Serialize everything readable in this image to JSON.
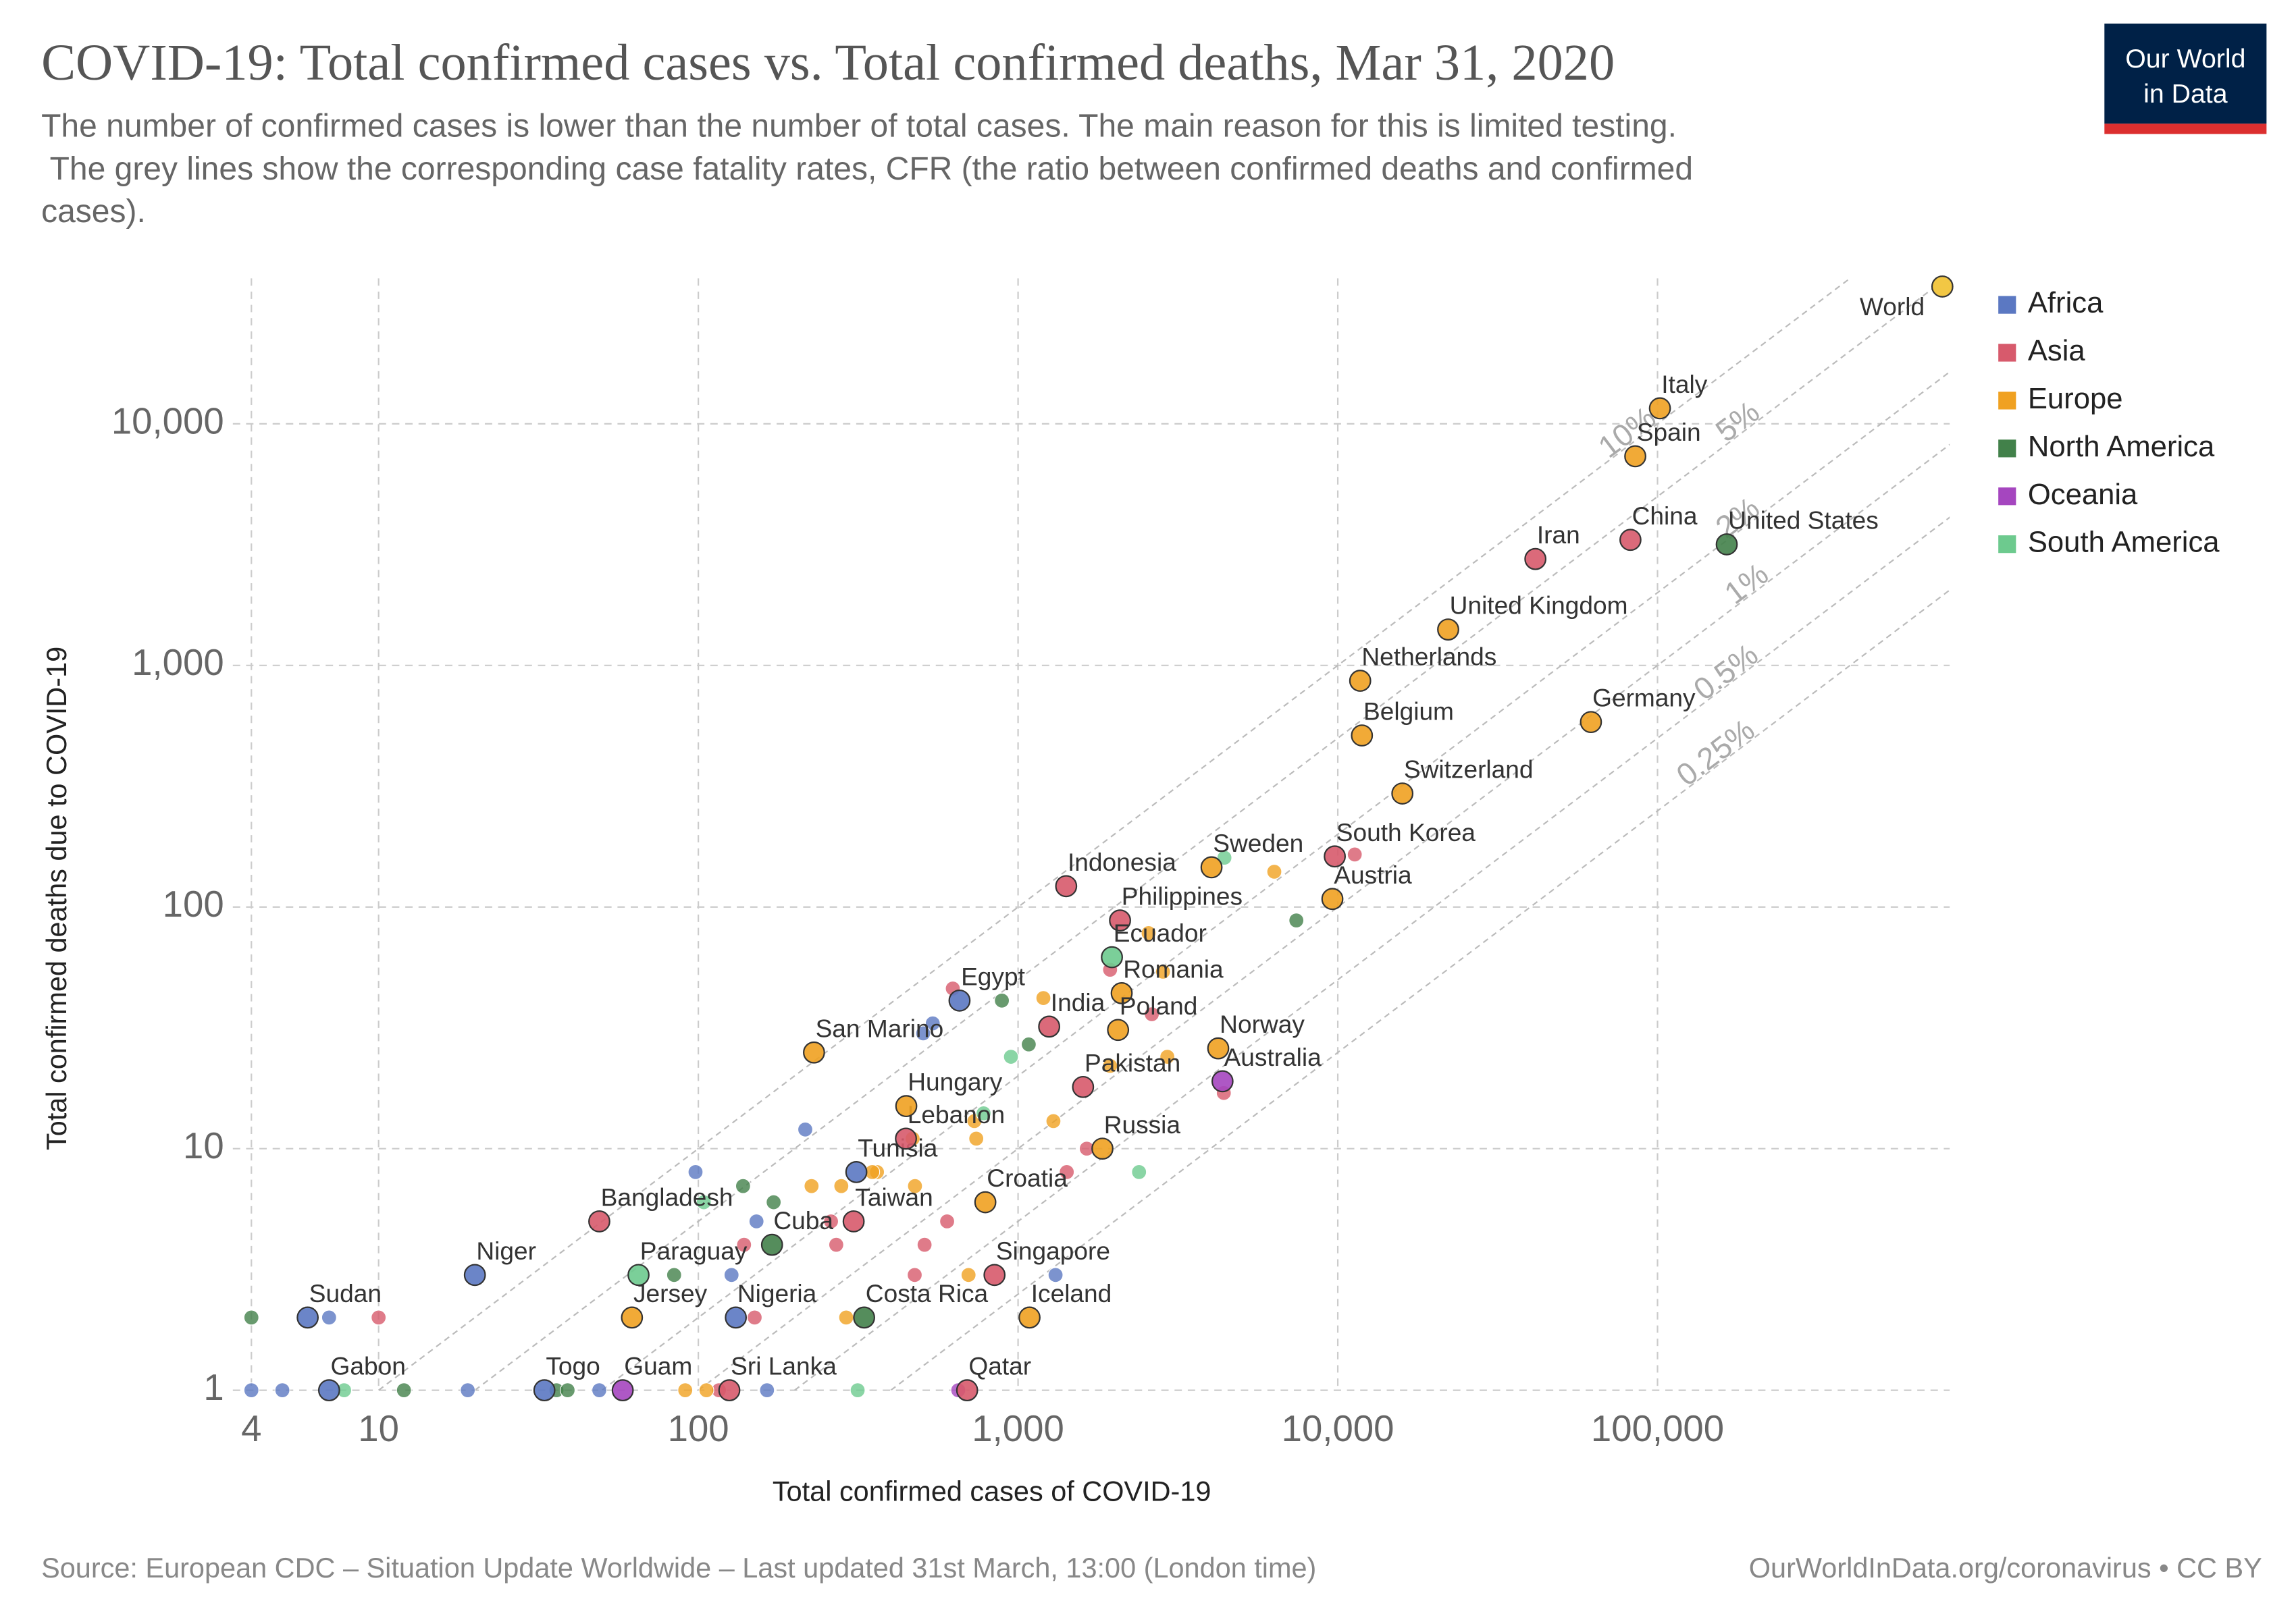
{
  "chart_data": {
    "type": "scatter",
    "title": "COVID-19: Total confirmed cases vs. Total confirmed deaths, Mar 31, 2020",
    "subtitle": [
      "The number of confirmed cases is lower than the number of total cases. The main reason for this is limited testing.",
      " The grey lines show the corresponding case fatality rates, CFR (the ratio between confirmed deaths and confirmed",
      "cases)."
    ],
    "logo": [
      "Our World",
      "in Data"
    ],
    "x_label": "Total confirmed cases of COVID-19",
    "y_label": "Total confirmed deaths due to COVID-19",
    "source": "Source: European CDC – Situation Update Worldwide – Last updated 31st March, 13:00 (London time)",
    "credit": "OurWorldInData.org/coronavirus • CC BY",
    "x_log": true,
    "y_log": true,
    "grid": true,
    "xlim": [
      3.5,
      820000
    ],
    "ylim": [
      1,
      40000
    ],
    "xticks": [
      4,
      10,
      100,
      {
        "value": 1000,
        "label": "1,000"
      },
      {
        "value": 10000,
        "label": "10,000"
      },
      {
        "value": 100000,
        "label": "100,000"
      }
    ],
    "yticks": [
      1,
      10,
      100,
      {
        "value": 1000,
        "label": "1,000"
      },
      {
        "value": 10000,
        "label": "10,000"
      }
    ],
    "cfr_lines": [
      {
        "value": 10,
        "label": "10%"
      },
      {
        "value": 5,
        "label": "5%"
      },
      {
        "value": 2,
        "label": "2%"
      },
      {
        "value": 1,
        "label": "1%"
      },
      {
        "value": 0.5,
        "label": "0.5%"
      },
      {
        "value": 0.25,
        "label": "0.25%"
      }
    ],
    "world_point": {
      "label": "World",
      "x": 777800,
      "y": 37000,
      "color": "#f2c744"
    },
    "legend_position": "top-right",
    "series": [
      {
        "name": "Africa",
        "color": "#5b78c2",
        "x": [
          656,
          312,
          20,
          6,
          131,
          7,
          33,
          4,
          5,
          7,
          19,
          49,
          164,
          98,
          152,
          127,
          216,
          541,
          505,
          1310
        ],
        "values": [
          41,
          8,
          3,
          2,
          2,
          1,
          1,
          1,
          1,
          2,
          1,
          1,
          1,
          8,
          5,
          3,
          12,
          33,
          30,
          3
        ],
        "labels": [
          "Egypt",
          "Tunisia",
          "Niger",
          "Sudan",
          "Nigeria",
          "Gabon",
          "Togo",
          null,
          null,
          null,
          null,
          null,
          null,
          null,
          null,
          null,
          null,
          null,
          null,
          null
        ]
      },
      {
        "name": "Asia",
        "color": "#d75a6c",
        "x": [
          82279,
          41495,
          9786,
          1414,
          2084,
          1251,
          1597,
          446,
          49,
          306,
          844,
          125,
          693,
          10,
          150,
          139,
          270,
          260,
          600,
          510,
          475,
          116,
          1420,
          1640,
          625,
          1940,
          2620,
          11300,
          4400
        ],
        "values": [
          3309,
          2757,
          162,
          122,
          88,
          32,
          18,
          11,
          5,
          5,
          3,
          1,
          1,
          2,
          2,
          4,
          4,
          5,
          5,
          4,
          3,
          1,
          8,
          10,
          46,
          55,
          36,
          165,
          17
        ],
        "labels": [
          "China",
          "Iran",
          "South Korea",
          "Indonesia",
          "Philippines",
          "India",
          "Pakistan",
          "Lebanon",
          "Bangladesh",
          "Taiwan",
          "Singapore",
          "Sri Lanka",
          "Qatar",
          null,
          null,
          null,
          null,
          null,
          null,
          null,
          null,
          null,
          null,
          null,
          null,
          null,
          null,
          null,
          null
        ]
      },
      {
        "name": "Europe",
        "color": "#f0a121",
        "x": [
          101739,
          85195,
          22141,
          11750,
          61913,
          11899,
          15922,
          4028,
          9618,
          2109,
          2055,
          230,
          4227,
          447,
          1836,
          790,
          62,
          1086,
          91,
          106,
          226,
          280,
          362,
          350,
          476,
          468,
          740,
          730,
          1290,
          1200,
          2560,
          2840,
          2930,
          1940,
          290,
          700,
          6330
        ],
        "values": [
          11591,
          7340,
          1408,
          864,
          583,
          513,
          295,
          146,
          108,
          44,
          31,
          25,
          26,
          15,
          10,
          6,
          2,
          2,
          1,
          1,
          7,
          7,
          8,
          8,
          7,
          11,
          11,
          13,
          13,
          42,
          78,
          54,
          24,
          22,
          2,
          3,
          140
        ],
        "labels": [
          "Italy",
          "Spain",
          "United Kingdom",
          "Netherlands",
          "Germany",
          "Belgium",
          "Switzerland",
          "Sweden",
          "Austria",
          "Romania",
          "Poland",
          "San Marino",
          "Norway",
          "Hungary",
          "Russia",
          "Croatia",
          "Jersey",
          "Iceland",
          null,
          null,
          null,
          null,
          null,
          null,
          null,
          null,
          null,
          null,
          null,
          null,
          null,
          null,
          null,
          null,
          null,
          null,
          null
        ]
      },
      {
        "name": "North America",
        "color": "#42814a",
        "x": [
          164620,
          170,
          330,
          4,
          12,
          36,
          39,
          84,
          138,
          172,
          890,
          1080,
          7420
        ],
        "values": [
          3170,
          4,
          2,
          2,
          1,
          1,
          1,
          3,
          7,
          6,
          41,
          27,
          88
        ],
        "labels": [
          "United States",
          "Cuba",
          "Costa Rica",
          null,
          null,
          null,
          null,
          null,
          null,
          null,
          null,
          null,
          null
        ]
      },
      {
        "name": "Oceania",
        "color": "#a546bf",
        "x": [
          4359,
          58,
          650
        ],
        "values": [
          19,
          1,
          1
        ],
        "labels": [
          "Australia",
          "Guam",
          null
        ]
      },
      {
        "name": "South America",
        "color": "#6dca8e",
        "x": [
          1966,
          65,
          7.8,
          315,
          104,
          950,
          780,
          2390,
          4420
        ],
        "values": [
          62,
          3,
          1,
          1,
          6,
          24,
          14,
          8,
          160
        ],
        "labels": [
          "Ecuador",
          "Paraguay",
          null,
          null,
          null,
          null,
          null,
          null,
          null
        ]
      }
    ]
  }
}
